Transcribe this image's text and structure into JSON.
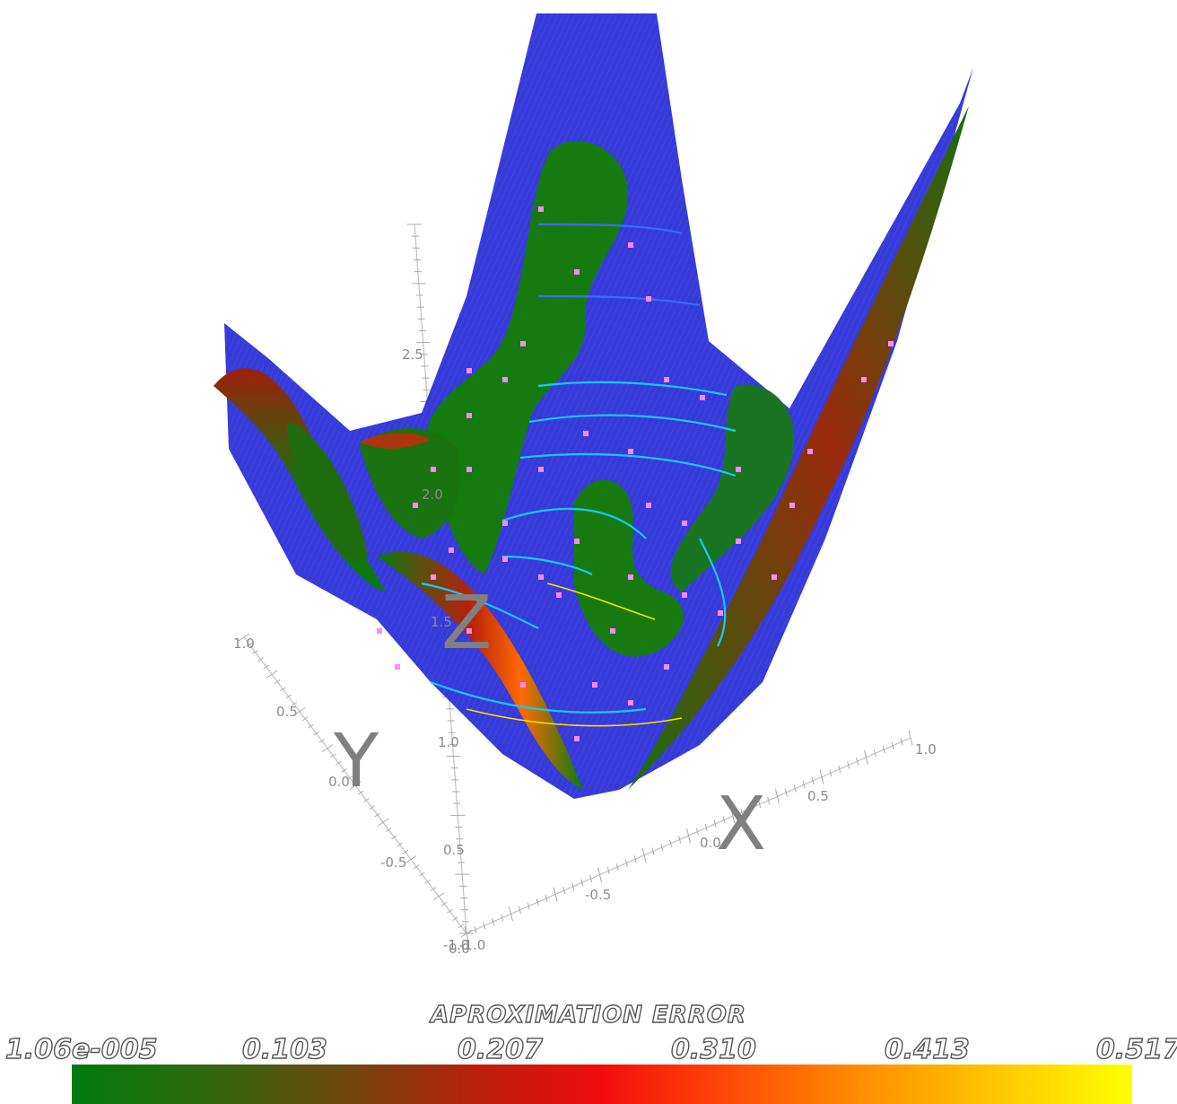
{
  "chart_data": {
    "type": "surface3d",
    "title": "",
    "axes": {
      "x": {
        "label": "X",
        "ticks": [
          "-1.0",
          "-0.5",
          "0.0",
          "0.5",
          "1.0"
        ],
        "range": [
          -1.0,
          1.0
        ]
      },
      "y": {
        "label": "Y",
        "ticks": [
          "-1.0",
          "-0.5",
          "0.0",
          "0.5",
          "1.0"
        ],
        "range": [
          -1.0,
          1.0
        ]
      },
      "z": {
        "label": "Z",
        "ticks": [
          "0.0",
          "0.5",
          "1.0",
          "1.5",
          "2.0",
          "2.5"
        ],
        "range": [
          0.0,
          3.0
        ]
      }
    },
    "legend": {
      "title": "APROXIMATION ERROR",
      "ticks": [
        "1.06e-005",
        "0.103",
        "0.207",
        "0.310",
        "0.413",
        "0.517"
      ],
      "range": [
        1.06e-05,
        0.517
      ],
      "colormap": [
        "#007a10",
        "#6a4a0c",
        "#f20c0c",
        "#ff8c00",
        "#ffff00"
      ],
      "placement": "bottom"
    },
    "colors": {
      "surface_base": "#2a2fd6",
      "low_error": "#0a7a10",
      "contour": "#19c8ff",
      "sample_points": "#ff88ff"
    }
  }
}
